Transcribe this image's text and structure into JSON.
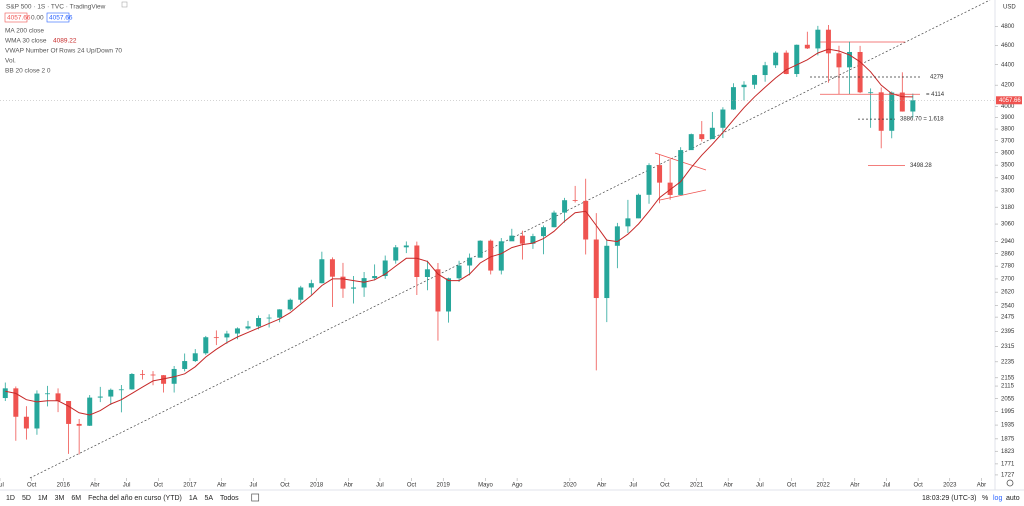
{
  "header": {
    "symbol": "S&P 500 · 1S · TVC · TradingView",
    "change": "0.00"
  },
  "indicators": [
    "MA 200 close",
    "VWAP Number Of Rows 24 Up/Down 70",
    "Vol.",
    "BB 20 close 2 0"
  ],
  "axis_currency": "USD",
  "toolbar": {
    "ranges": [
      "1D",
      "5D",
      "1M",
      "3M",
      "6M",
      "Fecha del año en curso (YTD)",
      "1A",
      "5A",
      "Todos"
    ],
    "time": "18:03:29 (UTC-3)",
    "options": [
      "%",
      "log",
      "auto"
    ]
  },
  "chart_data": {
    "type": "candlestick",
    "log": true,
    "x": [
      "2015-07",
      "2015-08",
      "2015-09",
      "2015-10",
      "2015-11",
      "2015-12",
      "2016-01",
      "2016-02",
      "2016-03",
      "2016-04",
      "2016-05",
      "2016-06",
      "2016-07",
      "2016-08",
      "2016-09",
      "2016-10",
      "2016-11",
      "2016-12",
      "2017-01",
      "2017-02",
      "2017-03",
      "2017-04",
      "2017-05",
      "2017-06",
      "2017-07",
      "2017-08",
      "2017-09",
      "2017-10",
      "2017-11",
      "2017-12",
      "2018-01",
      "2018-02",
      "2018-03",
      "2018-04",
      "2018-05",
      "2018-06",
      "2018-07",
      "2018-08",
      "2018-09",
      "2018-10",
      "2018-11",
      "2018-12",
      "2019-01",
      "2019-02",
      "2019-03",
      "2019-04",
      "2019-05",
      "2019-06",
      "2019-07",
      "2019-08",
      "2019-09",
      "2019-10",
      "2019-11",
      "2019-12",
      "2020-01",
      "2020-02",
      "2020-03",
      "2020-04",
      "2020-05",
      "2020-06",
      "2020-07",
      "2020-08",
      "2020-09",
      "2020-10",
      "2020-11",
      "2020-12",
      "2021-01",
      "2021-02",
      "2021-03",
      "2021-04",
      "2021-05",
      "2021-06",
      "2021-07",
      "2021-08",
      "2021-09",
      "2021-10",
      "2021-11",
      "2021-12",
      "2022-01",
      "2022-02",
      "2022-03",
      "2022-04",
      "2022-05",
      "2022-06",
      "2022-07",
      "2022-08",
      "2022-09"
    ],
    "series": [
      {
        "up_color": "#26a69a",
        "down_color": "#ef5350",
        "open": [
          2058,
          2104,
          1972,
          1920,
          2079,
          2080,
          2044,
          1940,
          1932,
          2060,
          2065,
          2097,
          2099,
          2174,
          2171,
          2168,
          2126,
          2199,
          2239,
          2279,
          2364,
          2363,
          2384,
          2412,
          2423,
          2470,
          2472,
          2519,
          2575,
          2648,
          2674,
          2824,
          2714,
          2641,
          2648,
          2705,
          2718,
          2816,
          2902,
          2914,
          2712,
          2760,
          2507,
          2704,
          2784,
          2834,
          2946,
          2752,
          2942,
          2980,
          2926,
          2977,
          3038,
          3141,
          3231,
          3226,
          2954,
          2585,
          2912,
          3044,
          3100,
          3271,
          3500,
          3363,
          3270,
          3622,
          3756,
          3714,
          3811,
          3973,
          4181,
          4204,
          4298,
          4395,
          4523,
          4308,
          4605,
          4567,
          4766,
          4516,
          4374,
          4530,
          4132,
          4132,
          3785,
          4130,
          3955
        ],
        "high": [
          2132,
          2113,
          2020,
          2094,
          2116,
          2104,
          2044,
          1962,
          2072,
          2111,
          2103,
          2120,
          2178,
          2194,
          2188,
          2169,
          2214,
          2278,
          2301,
          2371,
          2401,
          2399,
          2418,
          2454,
          2484,
          2491,
          2520,
          2582,
          2658,
          2695,
          2873,
          2836,
          2801,
          2718,
          2743,
          2791,
          2848,
          2917,
          2941,
          2940,
          2815,
          2800,
          2708,
          2814,
          2861,
          2949,
          2954,
          2964,
          3027,
          3014,
          2993,
          3050,
          3155,
          3248,
          3338,
          3393,
          3137,
          2955,
          3068,
          3233,
          3280,
          3515,
          3588,
          3550,
          3646,
          3761,
          3870,
          3951,
          3994,
          4218,
          4238,
          4302,
          4429,
          4537,
          4546,
          4608,
          4744,
          4808,
          4818,
          4595,
          4637,
          4593,
          4169,
          4178,
          4140,
          4325,
          4120
        ],
        "low": [
          2044,
          1867,
          1872,
          1893,
          2019,
          1993,
          1812,
          1810,
          1931,
          2039,
          2026,
          1992,
          2097,
          2147,
          2119,
          2084,
          2084,
          2187,
          2234,
          2271,
          2322,
          2329,
          2353,
          2405,
          2407,
          2417,
          2446,
          2511,
          2557,
          2605,
          2673,
          2533,
          2586,
          2553,
          2592,
          2691,
          2701,
          2796,
          2864,
          2603,
          2631,
          2346,
          2444,
          2681,
          2722,
          2849,
          2728,
          2728,
          2953,
          2822,
          2892,
          2856,
          3037,
          3070,
          3214,
          2855,
          2192,
          2447,
          2767,
          2999,
          3101,
          3205,
          3209,
          3234,
          3279,
          3623,
          3694,
          3725,
          3723,
          3970,
          4056,
          4165,
          4233,
          4368,
          4306,
          4279,
          4561,
          4495,
          4223,
          4115,
          4115,
          4124,
          3811,
          3637,
          3721,
          3954,
          3900
        ],
        "close": [
          2104,
          1972,
          1920,
          2079,
          2080,
          2044,
          1940,
          1932,
          2060,
          2065,
          2097,
          2099,
          2174,
          2171,
          2168,
          2126,
          2199,
          2239,
          2279,
          2364,
          2363,
          2384,
          2412,
          2423,
          2470,
          2472,
          2519,
          2575,
          2648,
          2674,
          2824,
          2714,
          2641,
          2648,
          2705,
          2718,
          2816,
          2902,
          2914,
          2712,
          2760,
          2507,
          2704,
          2784,
          2834,
          2946,
          2752,
          2942,
          2980,
          2926,
          2977,
          3038,
          3141,
          3231,
          3226,
          2954,
          2585,
          2912,
          3044,
          3100,
          3271,
          3500,
          3363,
          3270,
          3622,
          3756,
          3714,
          3811,
          3973,
          4181,
          4204,
          4298,
          4395,
          4523,
          4308,
          4605,
          4567,
          4766,
          4516,
          4374,
          4530,
          4132,
          4132,
          3785,
          4130,
          3955,
          4057.66
        ]
      },
      {
        "name": "WMA 30 close",
        "color": "#c62828",
        "values": [
          2090,
          2080,
          2050,
          2040,
          2045,
          2045,
          2020,
          1990,
          1980,
          2000,
          2030,
          2050,
          2080,
          2110,
          2140,
          2150,
          2160,
          2175,
          2210,
          2260,
          2300,
          2335,
          2365,
          2390,
          2415,
          2440,
          2465,
          2500,
          2550,
          2600,
          2660,
          2700,
          2700,
          2690,
          2680,
          2695,
          2730,
          2780,
          2830,
          2830,
          2810,
          2730,
          2690,
          2690,
          2730,
          2800,
          2840,
          2860,
          2900,
          2920,
          2930,
          2960,
          3010,
          3080,
          3140,
          3150,
          3050,
          2950,
          2940,
          2990,
          3060,
          3150,
          3250,
          3310,
          3370,
          3480,
          3580,
          3670,
          3770,
          3880,
          3990,
          4090,
          4180,
          4270,
          4350,
          4400,
          4450,
          4520,
          4560,
          4540,
          4500,
          4430,
          4330,
          4200,
          4120,
          4090,
          4089.22
        ]
      }
    ],
    "ylim": [
      1715,
      5100
    ],
    "yticks": [
      4800,
      4600,
      4400,
      4200,
      4000,
      3900,
      3800,
      3700,
      3600,
      3500,
      3400,
      3300,
      3180,
      3060,
      2940,
      2860,
      2780,
      2700,
      2620,
      2540,
      2475,
      2395,
      2315,
      2235,
      2155,
      2115,
      2055,
      1995,
      1935,
      1875,
      1823,
      1771,
      1727
    ],
    "xlim": [
      "2015-07",
      "2023-05"
    ],
    "xticks": [
      {
        "value": "2015-07",
        "label": "Jul"
      },
      {
        "value": "2015-10",
        "label": "Oct"
      },
      {
        "value": "2016-01",
        "label": "2016"
      },
      {
        "value": "2016-04",
        "label": "Abr"
      },
      {
        "value": "2016-07",
        "label": "Jul"
      },
      {
        "value": "2016-10",
        "label": "Oct"
      },
      {
        "value": "2017-01",
        "label": "2017"
      },
      {
        "value": "2017-04",
        "label": "Abr"
      },
      {
        "value": "2017-07",
        "label": "Jul"
      },
      {
        "value": "2017-10",
        "label": "Oct"
      },
      {
        "value": "2018-01",
        "label": "2018"
      },
      {
        "value": "2018-04",
        "label": "Abr"
      },
      {
        "value": "2018-07",
        "label": "Jul"
      },
      {
        "value": "2018-10",
        "label": "Oct"
      },
      {
        "value": "2019-01",
        "label": "2019"
      },
      {
        "value": "2019-05",
        "label": "Mayo"
      },
      {
        "value": "2019-08",
        "label": "Ago"
      },
      {
        "value": "2020-01",
        "label": "2020"
      },
      {
        "value": "2020-04",
        "label": "Abr"
      },
      {
        "value": "2020-07",
        "label": "Jul"
      },
      {
        "value": "2020-10",
        "label": "Oct"
      },
      {
        "value": "2021-01",
        "label": "2021"
      },
      {
        "value": "2021-04",
        "label": "Abr"
      },
      {
        "value": "2021-07",
        "label": "Jul"
      },
      {
        "value": "2021-10",
        "label": "Oct"
      },
      {
        "value": "2022-01",
        "label": "2022"
      },
      {
        "value": "2022-04",
        "label": "Abr"
      },
      {
        "value": "2022-07",
        "label": "Jul"
      },
      {
        "value": "2022-10",
        "label": "Oct"
      },
      {
        "value": "2023-01",
        "label": "2023"
      },
      {
        "value": "2023-04",
        "label": "Abr"
      }
    ],
    "levels": [
      {
        "value": 4279,
        "color": "#333333",
        "dashed": true
      },
      {
        "value": 4114,
        "label": "= 4114",
        "color": "#ef5350",
        "dashed": false
      },
      {
        "value": 3886.7,
        "label": "3886.70 = 1.618",
        "color": "#333333",
        "dashed": true
      },
      {
        "value": 3498.28,
        "color": "#ef5350",
        "dashed": false
      }
    ]
  }
}
